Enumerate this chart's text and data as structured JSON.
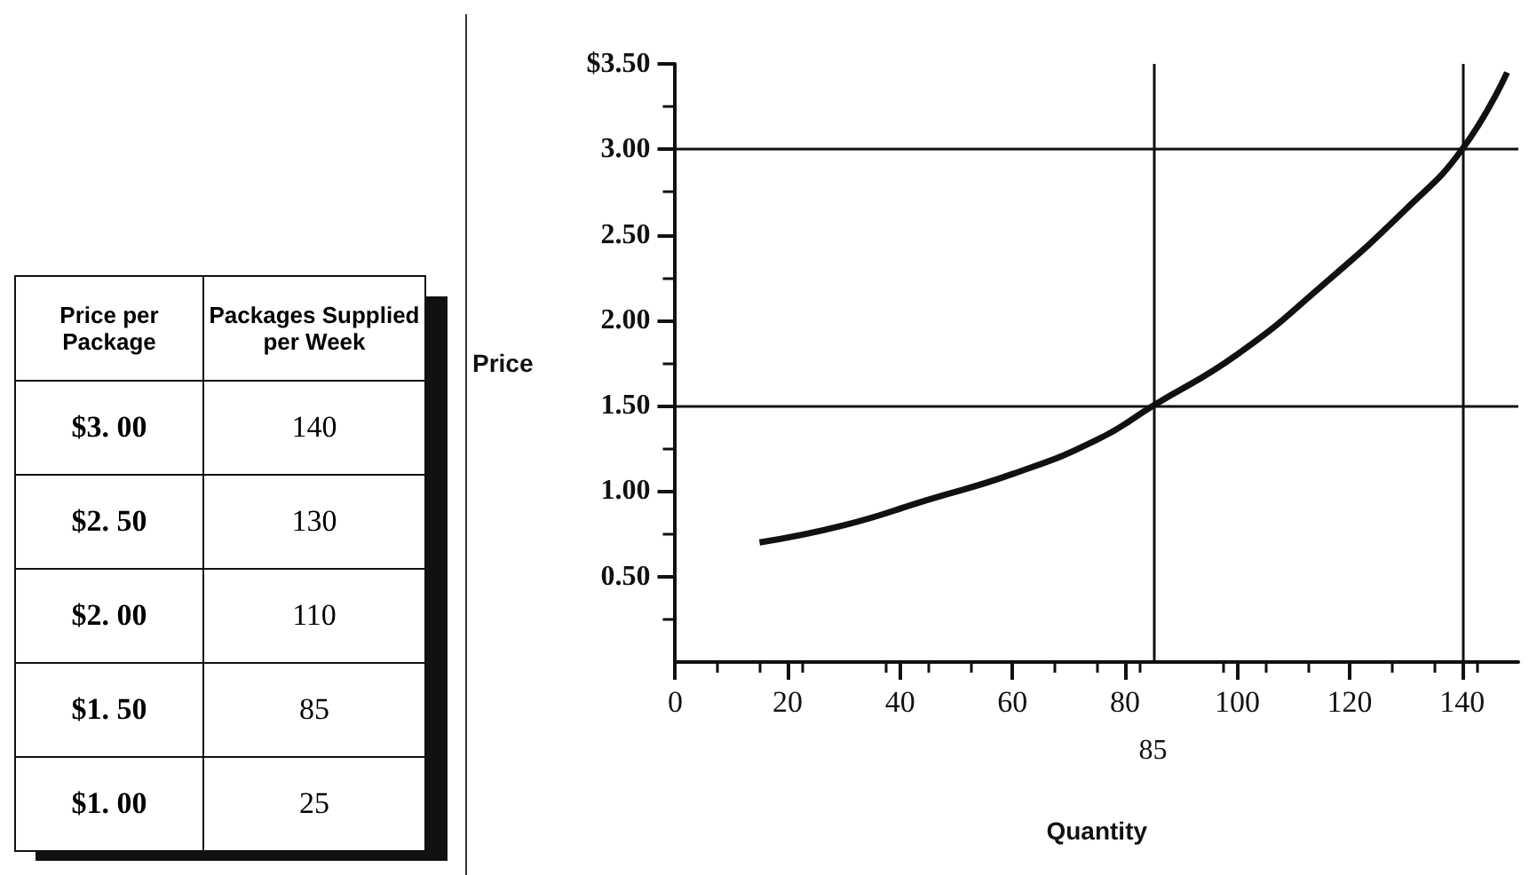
{
  "chart_data": [
    {
      "type": "other",
      "xlabel": "Price per Package",
      "ylabel": "Packages Supplied per Week",
      "categories": [
        "$3. 00",
        "$2. 50",
        "$2. 00",
        "$1. 50",
        "$1. 00"
      ],
      "values": [
        140,
        130,
        110,
        85,
        25
      ],
      "data_labels": true
    },
    {
      "type": "line",
      "xlabel": "Quantity",
      "ylabel": "Price",
      "color": "#111111",
      "marker": "none",
      "x": [
        15,
        30,
        45,
        60,
        75,
        85,
        100,
        115,
        130,
        140,
        148
      ],
      "values": [
        0.7,
        0.8,
        0.95,
        1.1,
        1.3,
        1.5,
        1.8,
        2.2,
        2.65,
        3.0,
        3.45
      ],
      "xlim": [
        0,
        150
      ],
      "xticks": [
        0,
        20,
        40,
        60,
        80,
        100,
        120,
        140
      ],
      "ylim": [
        0,
        3.5
      ],
      "yticks": [
        {
          "value": 0.5,
          "label": "0.50"
        },
        {
          "value": 1,
          "label": "1.00"
        },
        {
          "value": 1.5,
          "label": "1.50"
        },
        {
          "value": 2,
          "label": "2.00"
        },
        {
          "value": 2.5,
          "label": "2.50"
        },
        {
          "value": 3,
          "label": "3.00"
        },
        {
          "value": 3.5,
          "label": "$3.50"
        }
      ],
      "grid": false,
      "ref_lines": [
        {
          "axis": "x",
          "value": 85,
          "label": "85"
        },
        {
          "axis": "x",
          "value": 140
        },
        {
          "axis": "y",
          "value": 1.5
        },
        {
          "axis": "y",
          "value": 3
        }
      ]
    }
  ]
}
